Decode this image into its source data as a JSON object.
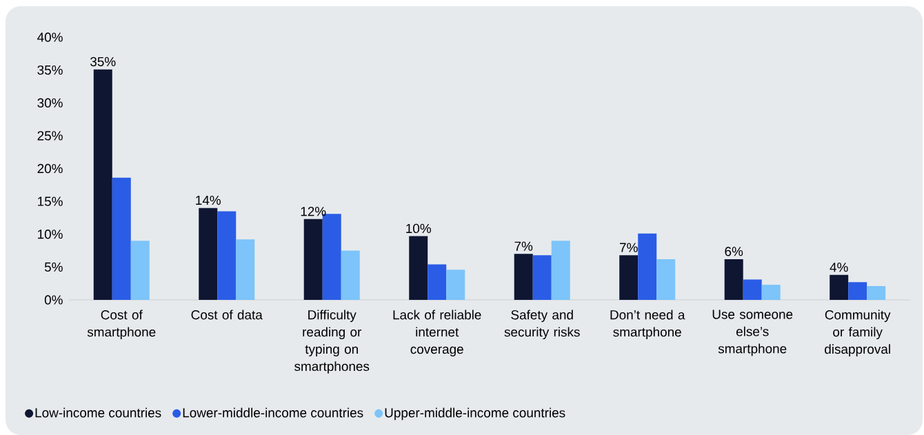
{
  "chart_data": {
    "type": "bar",
    "categories": [
      "Cost of smartphone",
      "Cost of data",
      "Difficulty reading or typing on smartphones",
      "Lack of reliable internet coverage",
      "Safety and security risks",
      "Don’t need a smartphone",
      "Use someone else’s smartphone",
      "Community or family disapproval"
    ],
    "series": [
      {
        "name": "Low-income countries",
        "color": "#0f1632",
        "values": [
          35.1,
          14.0,
          12.3,
          9.7,
          7.0,
          6.8,
          6.2,
          3.8
        ],
        "value_labels": [
          "35%",
          "14%",
          "12%",
          "10%",
          "7%",
          "7%",
          "6%",
          "4%"
        ]
      },
      {
        "name": "Lower-middle-income countries",
        "color": "#2a5ce6",
        "values": [
          18.6,
          13.5,
          13.1,
          5.4,
          6.8,
          10.1,
          3.1,
          2.7
        ]
      },
      {
        "name": "Upper-middle-income countries",
        "color": "#7cc4fa",
        "values": [
          9.0,
          9.2,
          7.5,
          4.6,
          9.0,
          6.2,
          2.3,
          2.1
        ]
      }
    ],
    "ylim": [
      0,
      40
    ],
    "yticks": [
      {
        "value": 0,
        "label": "0%"
      },
      {
        "value": 5,
        "label": "5%"
      },
      {
        "value": 10,
        "label": "10%"
      },
      {
        "value": 15,
        "label": "15%"
      },
      {
        "value": 20,
        "label": "20%"
      },
      {
        "value": 25,
        "label": "25%"
      },
      {
        "value": 30,
        "label": "30%"
      },
      {
        "value": 35,
        "label": "35%"
      },
      {
        "value": 40,
        "label": "40%"
      }
    ],
    "legend": "bottom left"
  }
}
